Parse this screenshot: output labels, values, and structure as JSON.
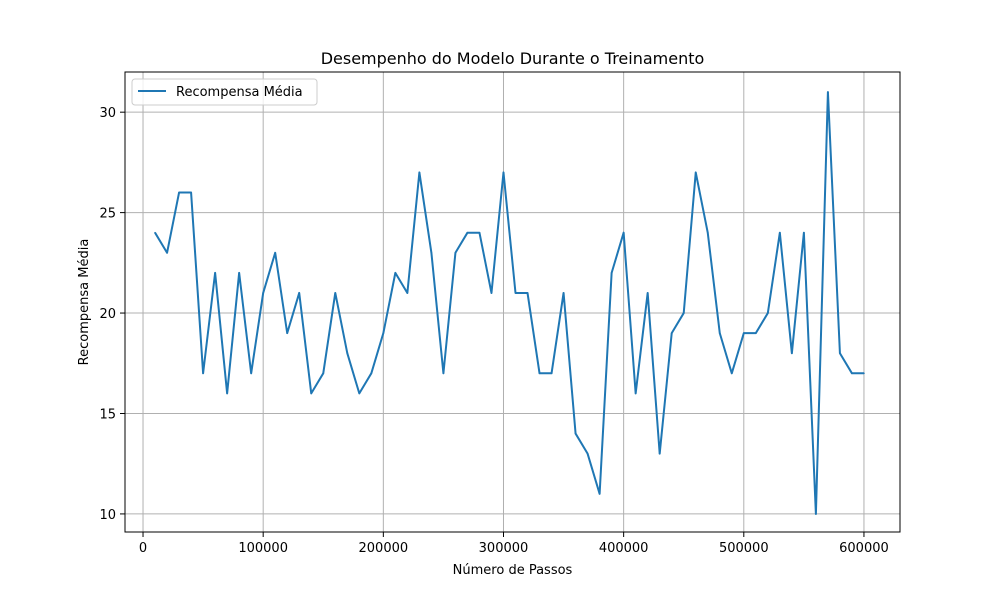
{
  "chart_data": {
    "type": "line",
    "title": "Desempenho do Modelo Durante o Treinamento",
    "xlabel": "Número de Passos",
    "ylabel": "Recompensa Média",
    "xlim": [
      -15000,
      630000
    ],
    "ylim": [
      9.1,
      32.0
    ],
    "x_ticks": [
      0,
      100000,
      200000,
      300000,
      400000,
      500000,
      600000
    ],
    "y_ticks": [
      10,
      15,
      20,
      25,
      30
    ],
    "grid": true,
    "legend_position": "upper-left",
    "series": [
      {
        "name": "Recompensa Média",
        "color": "#1f77b4",
        "x": [
          10000,
          20000,
          30000,
          40000,
          50000,
          60000,
          70000,
          80000,
          90000,
          100000,
          110000,
          120000,
          130000,
          140000,
          150000,
          160000,
          170000,
          180000,
          190000,
          200000,
          210000,
          220000,
          230000,
          240000,
          250000,
          260000,
          270000,
          280000,
          290000,
          300000,
          310000,
          320000,
          330000,
          340000,
          350000,
          360000,
          370000,
          380000,
          390000,
          400000,
          410000,
          420000,
          430000,
          440000,
          450000,
          460000,
          470000,
          480000,
          490000,
          500000,
          510000,
          520000,
          530000,
          540000,
          550000,
          560000,
          570000,
          580000,
          590000,
          600000
        ],
        "y": [
          24,
          23,
          26,
          26,
          17,
          22,
          16,
          22,
          17,
          21,
          23,
          19,
          21,
          16,
          17,
          21,
          18,
          16,
          17,
          19,
          22,
          21,
          27,
          23,
          17,
          23,
          24,
          24,
          21,
          27,
          21,
          21,
          17,
          17,
          21,
          14,
          13,
          11,
          22,
          24,
          16,
          21,
          13,
          19,
          20,
          27,
          24,
          19,
          17,
          19,
          19,
          20,
          24,
          18,
          24,
          10,
          31,
          18,
          17,
          17
        ]
      }
    ]
  }
}
